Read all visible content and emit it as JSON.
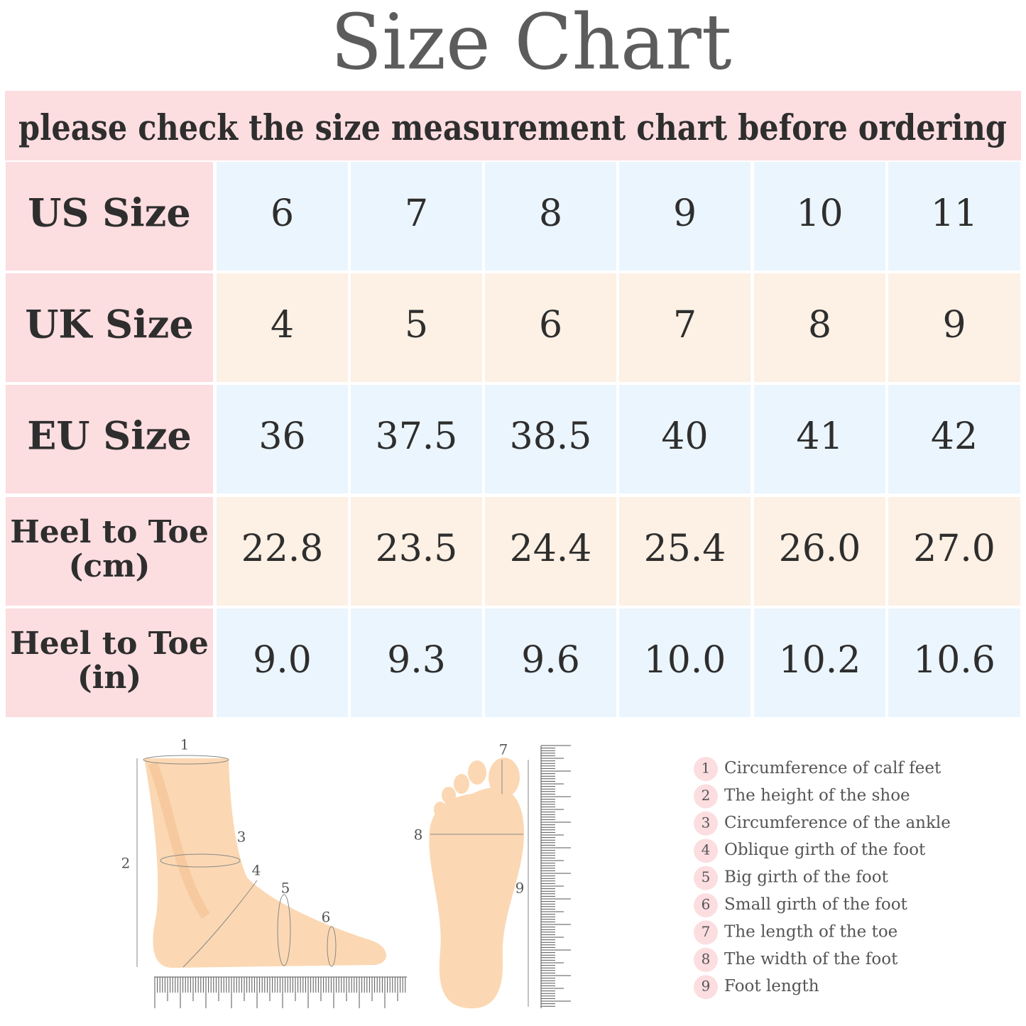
{
  "header": {
    "title": "Size  Chart",
    "subtitle": "please check the size measurement chart before ordering"
  },
  "table": {
    "rows": [
      {
        "label": [
          "US Size"
        ],
        "values": [
          "6",
          "7",
          "8",
          "9",
          "10",
          "11"
        ]
      },
      {
        "label": [
          "UK Size"
        ],
        "values": [
          "4",
          "5",
          "6",
          "7",
          "8",
          "9"
        ]
      },
      {
        "label": [
          "EU Size"
        ],
        "values": [
          "36",
          "37.5",
          "38.5",
          "40",
          "41",
          "42"
        ]
      },
      {
        "label": [
          "Heel to Toe",
          "(cm)"
        ],
        "values": [
          "22.8",
          "23.5",
          "24.4",
          "25.4",
          "26.0",
          "27.0"
        ]
      },
      {
        "label": [
          "Heel to Toe",
          "(in)"
        ],
        "values": [
          "9.0",
          "9.3",
          "9.6",
          "10.0",
          "10.2",
          "10.6"
        ]
      }
    ]
  },
  "diagram": {
    "side_labels": [
      "1",
      "2",
      "3",
      "4",
      "5",
      "6"
    ],
    "sole_labels": [
      "7",
      "8",
      "9"
    ]
  },
  "legend": [
    {
      "number": "1",
      "text": "Circumference of calf feet"
    },
    {
      "number": "2",
      "text": "The height of the shoe"
    },
    {
      "number": "3",
      "text": "Circumference of the ankle"
    },
    {
      "number": "4",
      "text": "Oblique girth of the foot"
    },
    {
      "number": "5",
      "text": "Big girth of the foot"
    },
    {
      "number": "6",
      "text": "Small girth of the foot"
    },
    {
      "number": "7",
      "text": "The length of the toe"
    },
    {
      "number": "8",
      "text": "The width of the foot"
    },
    {
      "number": "9",
      "text": "Foot length"
    }
  ]
}
